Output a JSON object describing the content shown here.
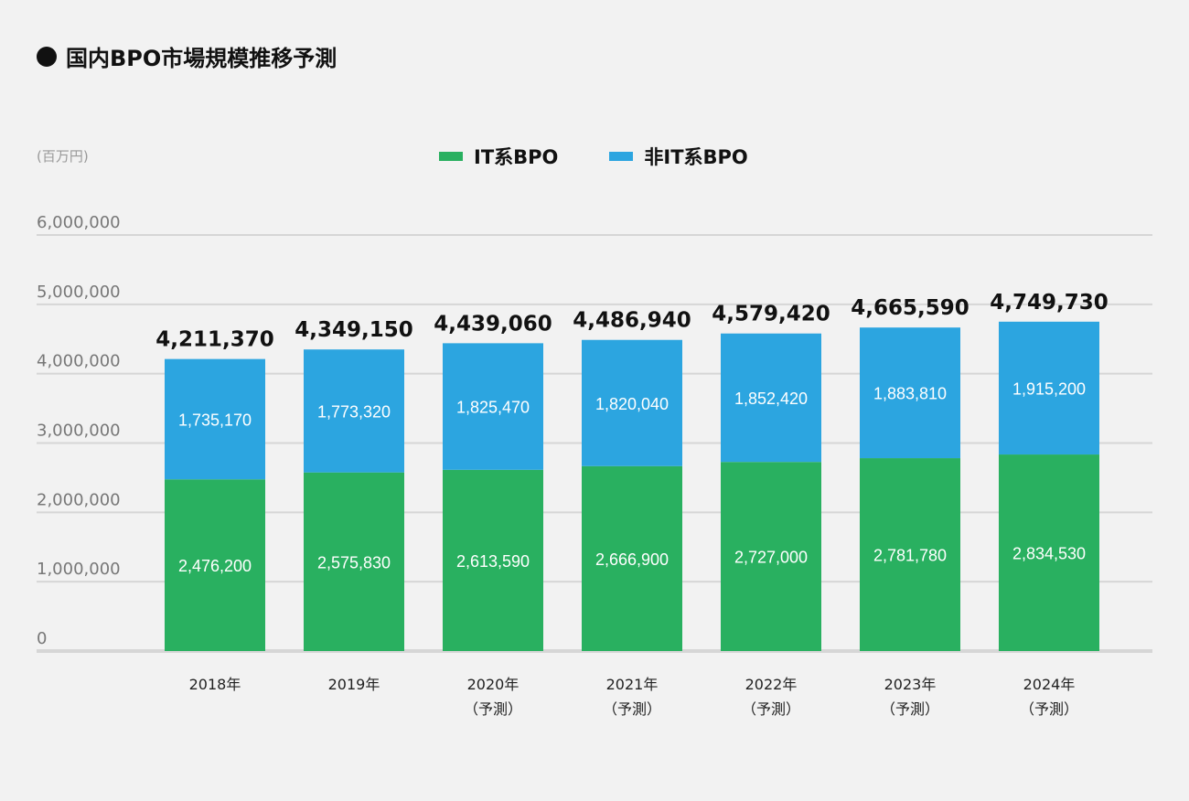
{
  "chart_data": {
    "type": "bar",
    "stacked": true,
    "title": "国内BPO市場規模推移予測",
    "ylabel": "(百万円)",
    "ylim": [
      0,
      6000000
    ],
    "yticks": [
      "0",
      "1,000,000",
      "2,000,000",
      "3,000,000",
      "4,000,000",
      "5,000,000",
      "6,000,000"
    ],
    "ytick_values": [
      0,
      1000000,
      2000000,
      3000000,
      4000000,
      5000000,
      6000000
    ],
    "grid": true,
    "legend_position": "top-center",
    "categories": [
      "2018年",
      "2019年",
      "2020年",
      "2021年",
      "2022年",
      "2023年",
      "2024年"
    ],
    "category_sublabels": [
      "",
      "",
      "（予測）",
      "（予測）",
      "（予測）",
      "（予測）",
      "（予測）"
    ],
    "series": [
      {
        "name": "IT系BPO",
        "color": "#29b060",
        "values": [
          2476200,
          2575830,
          2613590,
          2666900,
          2727000,
          2781780,
          2834530
        ],
        "labels": [
          "2,476,200",
          "2,575,830",
          "2,613,590",
          "2,666,900",
          "2,727,000",
          "2,781,780",
          "2,834,530"
        ]
      },
      {
        "name": "非IT系BPO",
        "color": "#2ca5e0",
        "values": [
          1735170,
          1773320,
          1825470,
          1820040,
          1852420,
          1883810,
          1915200
        ],
        "labels": [
          "1,735,170",
          "1,773,320",
          "1,825,470",
          "1,820,040",
          "1,852,420",
          "1,883,810",
          "1,915,200"
        ]
      }
    ],
    "totals": [
      "4,211,370",
      "4,349,150",
      "4,439,060",
      "4,486,940",
      "4,579,420",
      "4,665,590",
      "4,749,730"
    ]
  }
}
